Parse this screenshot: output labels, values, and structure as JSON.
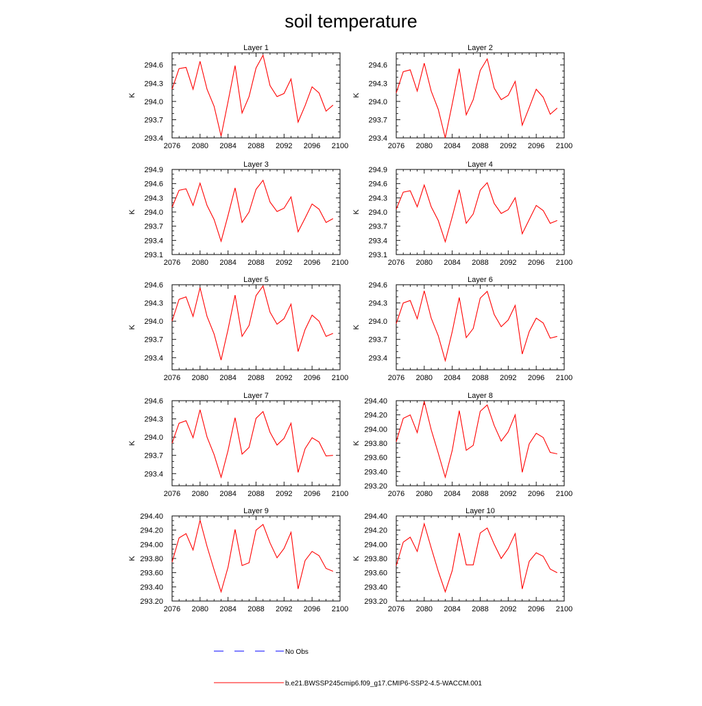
{
  "title": "soil temperature",
  "colors": {
    "model_line": "#ff0000",
    "obs_line": "#0000ff",
    "axis": "#000000"
  },
  "legend": {
    "obs_label": "No Obs",
    "model_label": "b.e21.BWSSP245cmip6.f09_g17.CMIP6-SSP2-4.5-WACCM.001"
  },
  "chart_data": [
    {
      "type": "line",
      "title": "Layer 1",
      "ylabel": "K",
      "xlim": [
        2076,
        2100
      ],
      "ylim": [
        293.4,
        294.8
      ],
      "xticks": [
        2076,
        2080,
        2084,
        2088,
        2092,
        2096,
        2100
      ],
      "yticks": [
        "293.4",
        "293.7",
        "294.0",
        "294.3",
        "294.6"
      ],
      "x": [
        2076,
        2077,
        2078,
        2079,
        2080,
        2081,
        2082,
        2083,
        2084,
        2085,
        2086,
        2087,
        2088,
        2089,
        2090,
        2091,
        2092,
        2093,
        2094,
        2095,
        2096,
        2097,
        2098,
        2099
      ],
      "values": [
        294.2,
        294.54,
        294.56,
        294.2,
        294.66,
        294.2,
        293.92,
        293.43,
        294.0,
        294.59,
        293.81,
        294.08,
        294.55,
        294.76,
        294.26,
        294.08,
        294.13,
        294.37,
        293.66,
        293.93,
        294.24,
        294.14,
        293.84,
        293.94
      ]
    },
    {
      "type": "line",
      "title": "Layer 2",
      "ylabel": "K",
      "xlim": [
        2076,
        2100
      ],
      "ylim": [
        293.4,
        294.8
      ],
      "xticks": [
        2076,
        2080,
        2084,
        2088,
        2092,
        2096,
        2100
      ],
      "yticks": [
        "293.4",
        "293.7",
        "294.0",
        "294.3",
        "294.6"
      ],
      "x": [
        2076,
        2077,
        2078,
        2079,
        2080,
        2081,
        2082,
        2083,
        2084,
        2085,
        2086,
        2087,
        2088,
        2089,
        2090,
        2091,
        2092,
        2093,
        2094,
        2095,
        2096,
        2097,
        2098,
        2099
      ],
      "values": [
        294.14,
        294.49,
        294.52,
        294.17,
        294.63,
        294.17,
        293.87,
        293.4,
        293.96,
        294.54,
        293.78,
        294.03,
        294.51,
        294.7,
        294.22,
        294.03,
        294.1,
        294.33,
        293.61,
        293.9,
        294.2,
        294.07,
        293.79,
        293.89
      ]
    },
    {
      "type": "line",
      "title": "Layer 3",
      "ylabel": "K",
      "xlim": [
        2076,
        2100
      ],
      "ylim": [
        293.1,
        294.9
      ],
      "xticks": [
        2076,
        2080,
        2084,
        2088,
        2092,
        2096,
        2100
      ],
      "yticks": [
        "293.1",
        "293.4",
        "293.7",
        "294.0",
        "294.3",
        "294.6",
        "294.9"
      ],
      "x": [
        2076,
        2077,
        2078,
        2079,
        2080,
        2081,
        2082,
        2083,
        2084,
        2085,
        2086,
        2087,
        2088,
        2089,
        2090,
        2091,
        2092,
        2093,
        2094,
        2095,
        2096,
        2097,
        2098,
        2099
      ],
      "values": [
        294.1,
        294.46,
        294.49,
        294.14,
        294.61,
        294.14,
        293.84,
        293.38,
        293.93,
        294.51,
        293.78,
        294.0,
        294.48,
        294.67,
        294.21,
        294.01,
        294.08,
        294.32,
        293.58,
        293.87,
        294.17,
        294.06,
        293.78,
        293.86
      ]
    },
    {
      "type": "line",
      "title": "Layer 4",
      "ylabel": "K",
      "xlim": [
        2076,
        2100
      ],
      "ylim": [
        293.1,
        294.9
      ],
      "xticks": [
        2076,
        2080,
        2084,
        2088,
        2092,
        2096,
        2100
      ],
      "yticks": [
        "293.1",
        "293.4",
        "293.7",
        "294.0",
        "294.3",
        "294.6",
        "294.9"
      ],
      "x": [
        2076,
        2077,
        2078,
        2079,
        2080,
        2081,
        2082,
        2083,
        2084,
        2085,
        2086,
        2087,
        2088,
        2089,
        2090,
        2091,
        2092,
        2093,
        2094,
        2095,
        2096,
        2097,
        2098,
        2099
      ],
      "values": [
        294.06,
        294.42,
        294.45,
        294.11,
        294.57,
        294.11,
        293.82,
        293.37,
        293.9,
        294.47,
        293.76,
        293.96,
        294.46,
        294.62,
        294.18,
        293.97,
        294.05,
        294.3,
        293.54,
        293.84,
        294.14,
        294.03,
        293.76,
        293.82
      ]
    },
    {
      "type": "line",
      "title": "Layer 5",
      "ylabel": "K",
      "xlim": [
        2076,
        2100
      ],
      "ylim": [
        293.2,
        294.6
      ],
      "xticks": [
        2076,
        2080,
        2084,
        2088,
        2092,
        2096,
        2100
      ],
      "yticks": [
        "293.4",
        "293.7",
        "294.0",
        "294.3",
        "294.6"
      ],
      "x": [
        2076,
        2077,
        2078,
        2079,
        2080,
        2081,
        2082,
        2083,
        2084,
        2085,
        2086,
        2087,
        2088,
        2089,
        2090,
        2091,
        2092,
        2093,
        2094,
        2095,
        2096,
        2097,
        2098,
        2099
      ],
      "values": [
        294.0,
        294.36,
        294.4,
        294.08,
        294.55,
        294.08,
        293.79,
        293.36,
        293.87,
        294.43,
        293.75,
        293.93,
        294.42,
        294.58,
        294.15,
        293.95,
        294.04,
        294.28,
        293.5,
        293.86,
        294.1,
        294.0,
        293.75,
        293.8
      ]
    },
    {
      "type": "line",
      "title": "Layer 6",
      "ylabel": "K",
      "xlim": [
        2076,
        2100
      ],
      "ylim": [
        293.2,
        294.6
      ],
      "xticks": [
        2076,
        2080,
        2084,
        2088,
        2092,
        2096,
        2100
      ],
      "yticks": [
        "293.4",
        "293.7",
        "294.0",
        "294.3",
        "294.6"
      ],
      "x": [
        2076,
        2077,
        2078,
        2079,
        2080,
        2081,
        2082,
        2083,
        2084,
        2085,
        2086,
        2087,
        2088,
        2089,
        2090,
        2091,
        2092,
        2093,
        2094,
        2095,
        2096,
        2097,
        2098,
        2099
      ],
      "values": [
        293.96,
        294.3,
        294.34,
        294.04,
        294.5,
        294.05,
        293.76,
        293.35,
        293.83,
        294.39,
        293.73,
        293.88,
        294.38,
        294.49,
        294.11,
        293.91,
        294.02,
        294.26,
        293.46,
        293.83,
        294.05,
        293.97,
        293.72,
        293.75
      ]
    },
    {
      "type": "line",
      "title": "Layer 7",
      "ylabel": "K",
      "xlim": [
        2076,
        2100
      ],
      "ylim": [
        293.2,
        294.6
      ],
      "xticks": [
        2076,
        2080,
        2084,
        2088,
        2092,
        2096,
        2100
      ],
      "yticks": [
        "293.4",
        "293.7",
        "294.0",
        "294.3",
        "294.6"
      ],
      "x": [
        2076,
        2077,
        2078,
        2079,
        2080,
        2081,
        2082,
        2083,
        2084,
        2085,
        2086,
        2087,
        2088,
        2089,
        2090,
        2091,
        2092,
        2093,
        2094,
        2095,
        2096,
        2097,
        2098,
        2099
      ],
      "values": [
        293.9,
        294.23,
        294.27,
        293.99,
        294.45,
        294.0,
        293.71,
        293.34,
        293.78,
        294.32,
        293.72,
        293.83,
        294.31,
        294.42,
        294.08,
        293.87,
        293.98,
        294.23,
        293.42,
        293.81,
        293.99,
        293.92,
        293.69,
        293.7
      ]
    },
    {
      "type": "line",
      "title": "Layer 8",
      "ylabel": "K",
      "xlim": [
        2076,
        2100
      ],
      "ylim": [
        293.2,
        294.4
      ],
      "xticks": [
        2076,
        2080,
        2084,
        2088,
        2092,
        2096,
        2100
      ],
      "yticks": [
        "293.20",
        "293.40",
        "293.60",
        "293.80",
        "294.00",
        "294.20",
        "294.40"
      ],
      "x": [
        2076,
        2077,
        2078,
        2079,
        2080,
        2081,
        2082,
        2083,
        2084,
        2085,
        2086,
        2087,
        2088,
        2089,
        2090,
        2091,
        2092,
        2093,
        2094,
        2095,
        2096,
        2097,
        2098,
        2099
      ],
      "values": [
        293.82,
        294.15,
        294.2,
        293.95,
        294.39,
        293.99,
        293.66,
        293.32,
        293.7,
        294.26,
        293.7,
        293.77,
        294.25,
        294.34,
        294.05,
        293.83,
        293.96,
        294.2,
        293.39,
        293.79,
        293.94,
        293.88,
        293.67,
        293.65
      ]
    },
    {
      "type": "line",
      "title": "Layer 9",
      "ylabel": "K",
      "xlim": [
        2076,
        2100
      ],
      "ylim": [
        293.2,
        294.4
      ],
      "xticks": [
        2076,
        2080,
        2084,
        2088,
        2092,
        2096,
        2100
      ],
      "yticks": [
        "293.20",
        "293.40",
        "293.60",
        "293.80",
        "294.00",
        "294.20",
        "294.40"
      ],
      "x": [
        2076,
        2077,
        2078,
        2079,
        2080,
        2081,
        2082,
        2083,
        2084,
        2085,
        2086,
        2087,
        2088,
        2089,
        2090,
        2091,
        2092,
        2093,
        2094,
        2095,
        2096,
        2097,
        2098,
        2099
      ],
      "values": [
        293.75,
        294.09,
        294.15,
        293.92,
        294.34,
        293.97,
        293.64,
        293.33,
        293.68,
        294.21,
        293.7,
        293.74,
        294.2,
        294.28,
        294.02,
        293.81,
        293.94,
        294.17,
        293.37,
        293.77,
        293.9,
        293.84,
        293.66,
        293.62
      ]
    },
    {
      "type": "line",
      "title": "Layer 10",
      "ylabel": "K",
      "xlim": [
        2076,
        2100
      ],
      "ylim": [
        293.2,
        294.4
      ],
      "xticks": [
        2076,
        2080,
        2084,
        2088,
        2092,
        2096,
        2100
      ],
      "yticks": [
        "293.20",
        "293.40",
        "293.60",
        "293.80",
        "294.00",
        "294.20",
        "294.40"
      ],
      "x": [
        2076,
        2077,
        2078,
        2079,
        2080,
        2081,
        2082,
        2083,
        2084,
        2085,
        2086,
        2087,
        2088,
        2089,
        2090,
        2091,
        2092,
        2093,
        2094,
        2095,
        2096,
        2097,
        2098,
        2099
      ],
      "values": [
        293.7,
        294.03,
        294.1,
        293.9,
        294.29,
        293.95,
        293.62,
        293.33,
        293.63,
        294.16,
        293.71,
        293.71,
        294.16,
        294.23,
        294.0,
        293.8,
        293.94,
        294.15,
        293.37,
        293.76,
        293.88,
        293.83,
        293.65,
        293.6
      ]
    }
  ]
}
